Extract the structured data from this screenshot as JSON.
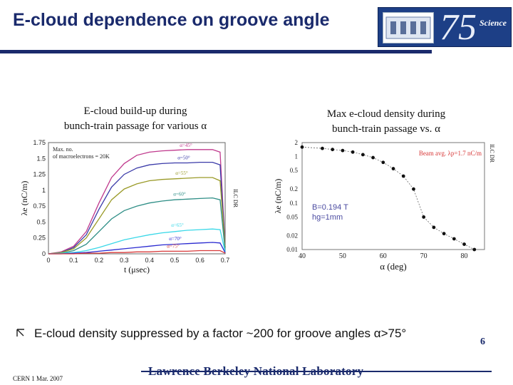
{
  "slide": {
    "title": "E-cloud dependence on groove angle",
    "left_caption_line1": "E-cloud build-up during",
    "left_caption_line2": "bunch-train passage for various α",
    "right_caption_line1": "Max e-cloud density during",
    "right_caption_line2": "bunch-train passage vs. α",
    "bullet_symbol": "ᴿ",
    "bullet_text": "E-cloud density suppressed by a factor ~200 for groove angles α>75°",
    "page_number": "6",
    "footer_left": "CERN  1 Mar. 2007",
    "footer_center": "Lawrence Berkeley National Laboratory",
    "logo_number": "75",
    "logo_word": "Science"
  },
  "chart_data": [
    {
      "type": "line",
      "xlabel": "t (μsec)",
      "ylabel": "λe (nC/m)",
      "side_label": "ILC DR",
      "xlim": [
        0,
        0.7
      ],
      "ylim": [
        0,
        1.75
      ],
      "x_ticks": [
        "0",
        "0.1",
        "0.2",
        "0.3",
        "0.4",
        "0.5",
        "0.6",
        "0.7"
      ],
      "y_ticks": [
        "0",
        "0.25",
        "0.5",
        "0.75",
        "1",
        "1.25",
        "1.5",
        "1.75"
      ],
      "annotation_line1": "Max. no.",
      "annotation_line2": "of macroelectrons = 20K",
      "x": [
        0,
        0.05,
        0.1,
        0.15,
        0.2,
        0.25,
        0.3,
        0.35,
        0.4,
        0.45,
        0.5,
        0.55,
        0.6,
        0.65,
        0.68,
        0.7
      ],
      "series": [
        {
          "name": "α=45°",
          "color": "#c0398d",
          "values": [
            0,
            0.03,
            0.12,
            0.35,
            0.8,
            1.2,
            1.42,
            1.55,
            1.6,
            1.62,
            1.63,
            1.64,
            1.64,
            1.64,
            1.6,
            0.1
          ]
        },
        {
          "name": "α=50°",
          "color": "#3a3aa8",
          "values": [
            0,
            0.02,
            0.1,
            0.3,
            0.7,
            1.05,
            1.25,
            1.35,
            1.4,
            1.42,
            1.43,
            1.43,
            1.44,
            1.44,
            1.4,
            0.1
          ]
        },
        {
          "name": "α=55°",
          "color": "#9a9a28",
          "values": [
            0,
            0.02,
            0.08,
            0.25,
            0.55,
            0.85,
            1.02,
            1.1,
            1.15,
            1.17,
            1.18,
            1.19,
            1.2,
            1.2,
            1.15,
            0.1
          ]
        },
        {
          "name": "α=60°",
          "color": "#2e8e86",
          "values": [
            0,
            0.01,
            0.05,
            0.15,
            0.35,
            0.55,
            0.68,
            0.75,
            0.8,
            0.83,
            0.85,
            0.86,
            0.87,
            0.88,
            0.85,
            0.05
          ]
        },
        {
          "name": "α=65°",
          "color": "#3ad8e8",
          "values": [
            0,
            0.01,
            0.02,
            0.05,
            0.1,
            0.16,
            0.22,
            0.26,
            0.3,
            0.33,
            0.35,
            0.37,
            0.38,
            0.39,
            0.38,
            0.03
          ]
        },
        {
          "name": "α=70°",
          "color": "#2a2ad0",
          "values": [
            0,
            0.0,
            0.01,
            0.02,
            0.04,
            0.06,
            0.08,
            0.1,
            0.12,
            0.14,
            0.15,
            0.16,
            0.17,
            0.18,
            0.17,
            0.02
          ]
        },
        {
          "name": "α=75°",
          "color": "#d83a3a",
          "values": [
            0,
            0.0,
            0.0,
            0.01,
            0.01,
            0.02,
            0.02,
            0.03,
            0.03,
            0.04,
            0.04,
            0.04,
            0.05,
            0.05,
            0.05,
            0.01
          ]
        }
      ]
    },
    {
      "type": "scatter",
      "xlabel": "α (deg)",
      "ylabel": "λe (nC/m)",
      "side_label": "ILC DR",
      "log_y": true,
      "xlim": [
        40,
        85
      ],
      "ylim": [
        0.01,
        2
      ],
      "x_ticks": [
        "40",
        "50",
        "60",
        "70",
        "80"
      ],
      "y_ticks": [
        "2",
        "1",
        "0.5",
        "0.2",
        "0.1",
        "0.05",
        "0.02",
        "0.01"
      ],
      "beam_label": "Beam avg. λp=1.7 nC/m",
      "field_label": "B=0.194 T",
      "depth_label": "hg=1mm",
      "x": [
        40,
        45,
        47.5,
        50,
        52.5,
        55,
        57.5,
        60,
        62.5,
        65,
        67.5,
        70,
        72.5,
        75,
        77.5,
        80,
        82.5
      ],
      "values": [
        1.6,
        1.5,
        1.42,
        1.35,
        1.25,
        1.1,
        0.95,
        0.75,
        0.55,
        0.38,
        0.2,
        0.05,
        0.03,
        0.022,
        0.017,
        0.013,
        0.01
      ]
    }
  ]
}
